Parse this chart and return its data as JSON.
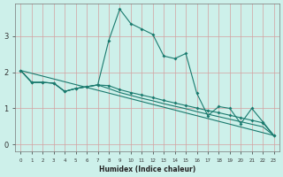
{
  "title": "",
  "xlabel": "Humidex (Indice chaleur)",
  "bg_color": "#cdf0ea",
  "line_color": "#1a7a6e",
  "grid_color_major": "#d4a0a0",
  "xlim": [
    -0.5,
    23.5
  ],
  "ylim": [
    -0.2,
    3.9
  ],
  "xticks": [
    0,
    1,
    2,
    3,
    4,
    5,
    6,
    7,
    8,
    9,
    10,
    11,
    12,
    13,
    14,
    15,
    16,
    17,
    18,
    19,
    20,
    21,
    22,
    23
  ],
  "yticks": [
    0,
    1,
    2,
    3
  ],
  "line1_x": [
    0,
    1,
    2,
    3,
    4,
    5,
    6,
    7,
    8,
    9,
    10,
    11,
    12,
    13,
    14,
    15,
    16,
    17,
    18,
    19,
    20,
    21,
    22,
    23
  ],
  "line1_y": [
    2.05,
    1.72,
    1.72,
    1.7,
    1.47,
    1.55,
    1.6,
    1.65,
    2.88,
    3.75,
    3.35,
    3.2,
    3.05,
    2.45,
    2.38,
    2.52,
    1.42,
    0.8,
    1.05,
    1.0,
    0.58,
    1.0,
    0.63,
    0.25
  ],
  "line2_x": [
    0,
    1,
    2,
    3,
    4,
    5,
    6,
    7,
    8,
    9,
    10,
    11,
    12,
    13,
    14,
    15,
    16,
    17,
    18,
    19,
    20,
    21,
    22,
    23
  ],
  "line2_y": [
    2.05,
    1.72,
    1.72,
    1.7,
    1.47,
    1.55,
    1.6,
    1.65,
    1.63,
    1.52,
    1.44,
    1.37,
    1.3,
    1.22,
    1.15,
    1.08,
    1.01,
    0.94,
    0.88,
    0.81,
    0.74,
    0.67,
    0.6,
    0.25
  ],
  "line3_x": [
    0,
    1,
    2,
    3,
    4,
    5,
    6,
    7,
    8,
    9,
    10,
    11,
    12,
    13,
    14,
    15,
    16,
    17,
    18,
    19,
    20,
    21,
    22,
    23
  ],
  "line3_y": [
    2.05,
    1.72,
    1.72,
    1.7,
    1.47,
    1.55,
    1.6,
    1.65,
    1.55,
    1.44,
    1.36,
    1.28,
    1.21,
    1.13,
    1.06,
    0.99,
    0.91,
    0.84,
    0.77,
    0.7,
    0.63,
    0.56,
    0.49,
    0.25
  ],
  "line4_x": [
    0,
    23
  ],
  "line4_y": [
    2.05,
    0.25
  ]
}
